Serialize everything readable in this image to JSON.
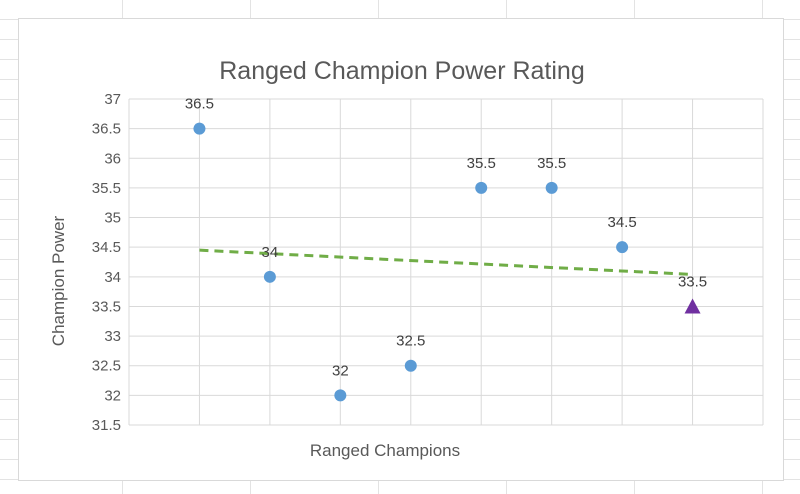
{
  "chart_data": {
    "type": "scatter",
    "title": "Ranged Champion Power Rating",
    "xlabel": "Ranged Champions",
    "ylabel": "Champion Power",
    "x": [
      1,
      2,
      3,
      4,
      5,
      6,
      7,
      8
    ],
    "xlim": [
      0,
      9
    ],
    "ylim": [
      31.5,
      37
    ],
    "y_ticks": [
      "31.5",
      "32",
      "32.5",
      "33",
      "33.5",
      "34",
      "34.5",
      "35",
      "35.5",
      "36",
      "36.5",
      "37"
    ],
    "grid": true,
    "series": [
      {
        "values": [
          36.5,
          34,
          32,
          32.5,
          35.5,
          35.5,
          34.5,
          null
        ],
        "labels": [
          "36.5",
          "34",
          "32",
          "32.5",
          "35.5",
          "35.5",
          "34.5",
          ""
        ],
        "marker": "circle",
        "color": "#5b9bd5"
      },
      {
        "values": [
          null,
          null,
          null,
          null,
          null,
          null,
          null,
          33.5
        ],
        "labels": [
          "",
          "",
          "",
          "",
          "",
          "",
          "",
          "33.5"
        ],
        "marker": "triangle",
        "color": "#7030a0"
      }
    ],
    "trendline": {
      "type": "linear",
      "x": [
        1,
        8
      ],
      "y": [
        34.45,
        34.04
      ],
      "style": "dashed",
      "color": "#70ad47"
    }
  }
}
